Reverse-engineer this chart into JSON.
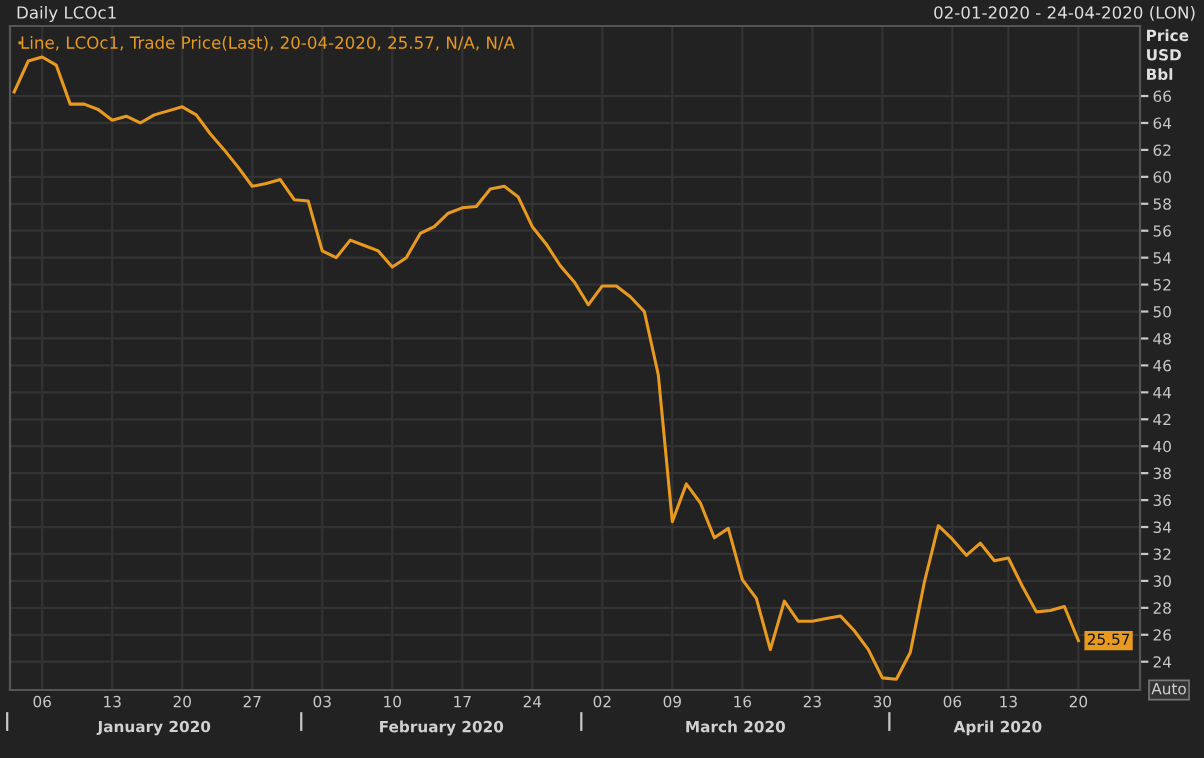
{
  "chart_data": {
    "type": "line",
    "title": "Daily LCOc1",
    "subtitle": "02-01-2020 - 24-04-2020 (LON)",
    "ylabel": "Price\nUSD\nBbl",
    "categories": [
      null,
      null,
      "06",
      null,
      null,
      null,
      null,
      "13",
      null,
      null,
      null,
      null,
      "20",
      null,
      null,
      null,
      null,
      "27",
      null,
      null,
      null,
      null,
      "03",
      null,
      null,
      null,
      null,
      "10",
      null,
      null,
      null,
      null,
      "17",
      null,
      null,
      null,
      null,
      "24",
      null,
      null,
      null,
      null,
      "02",
      null,
      null,
      null,
      null,
      "09",
      null,
      null,
      null,
      null,
      "16",
      null,
      null,
      null,
      null,
      "23",
      null,
      null,
      null,
      null,
      "30",
      null,
      null,
      null,
      null,
      "06",
      null,
      null,
      null,
      "13",
      null,
      null,
      null,
      null,
      "20",
      null,
      null,
      null,
      null
    ],
    "series": [
      {
        "name": "Line, LCOc1, Trade Price(Last), 20-04-2020, 25.57, N/A, N/A",
        "color": "#e89a20",
        "values": [
          66.3,
          68.6,
          68.9,
          68.3,
          65.4,
          65.4,
          65.0,
          64.2,
          64.5,
          64.0,
          64.6,
          64.9,
          65.2,
          64.6,
          63.2,
          62.0,
          60.7,
          59.3,
          59.5,
          59.8,
          58.3,
          58.2,
          54.5,
          54.0,
          55.3,
          54.9,
          54.5,
          53.3,
          54.0,
          55.8,
          56.3,
          57.3,
          57.7,
          57.8,
          59.1,
          59.3,
          58.5,
          56.3,
          55.0,
          53.4,
          52.2,
          50.5,
          51.9,
          51.9,
          51.1,
          50.0,
          45.3,
          34.4,
          37.2,
          35.8,
          33.2,
          33.9,
          30.1,
          28.7,
          24.9,
          28.5,
          27.0,
          27.0,
          27.2,
          27.4,
          26.3,
          24.9,
          22.8,
          22.7,
          24.7,
          29.9,
          34.1,
          33.1,
          31.9,
          32.8,
          31.5,
          31.7,
          29.6,
          27.7,
          27.8,
          28.1,
          25.57,
          null,
          null,
          null,
          null
        ],
        "value_labels": [
          null,
          null,
          null,
          null,
          null,
          null,
          null,
          null,
          null,
          null,
          null,
          null,
          null,
          null,
          null,
          null,
          null,
          null,
          null,
          null,
          null,
          null,
          null,
          null,
          null,
          null,
          null,
          null,
          null,
          null,
          null,
          null,
          null,
          null,
          null,
          null,
          null,
          null,
          null,
          null,
          null,
          null,
          null,
          null,
          null,
          null,
          null,
          null,
          null,
          null,
          null,
          null,
          null,
          null,
          null,
          null,
          null,
          null,
          null,
          null,
          null,
          null,
          null,
          null,
          null,
          null,
          null,
          null,
          null,
          null,
          null,
          null,
          null,
          null,
          null,
          null,
          "25.57",
          null,
          null,
          null,
          null
        ]
      }
    ],
    "ylim": [
      21.9,
      71.2
    ],
    "yticks": [
      24,
      26,
      28,
      30,
      32,
      34,
      36,
      38,
      40,
      42,
      44,
      46,
      48,
      50,
      52,
      54,
      56,
      58,
      60,
      62,
      64,
      66
    ],
    "grid": true,
    "legend": "top left",
    "marker": "none",
    "line_style": "solid",
    "annotations": [
      "January 2020",
      "February 2020",
      "March 2020",
      "April 2020",
      "Auto"
    ]
  }
}
